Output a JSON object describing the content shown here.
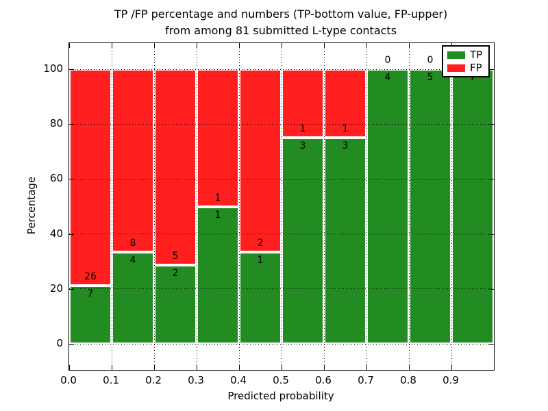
{
  "figure": {
    "title_line1": "TP /FP percentage and numbers (TP-bottom value, FP-upper)",
    "title_line2": "from among 81 submitted L-type contacts",
    "xlabel": "Predicted probability",
    "ylabel": "Percentage"
  },
  "colors": {
    "tp": "#228b22",
    "fp": "#ff1f1f",
    "bar_edge": "#ffffff",
    "grid": "#000000",
    "text": "#000000",
    "background": "#ffffff"
  },
  "legend": {
    "position": "upper right",
    "items": [
      {
        "label": "TP",
        "color_key": "tp"
      },
      {
        "label": "FP",
        "color_key": "fp"
      }
    ]
  },
  "chart_data": {
    "type": "bar",
    "stacked": true,
    "unit": "percent",
    "title": "TP /FP percentage and numbers (TP-bottom value, FP-upper) from among 81 submitted L-type contacts",
    "xlabel": "Predicted probability",
    "ylabel": "Percentage",
    "xlim": [
      0.0,
      1.0
    ],
    "ylim": [
      -10,
      110
    ],
    "x_tick_labels": [
      "0.0",
      "0.1",
      "0.2",
      "0.3",
      "0.4",
      "0.5",
      "0.6",
      "0.7",
      "0.8",
      "0.9"
    ],
    "y_ticks": [
      0,
      20,
      40,
      60,
      80,
      100
    ],
    "grid": "dotted",
    "bin_width": 0.1,
    "total_contacts": 81,
    "series": [
      {
        "name": "TP",
        "color_key": "tp",
        "counts": [
          7,
          4,
          2,
          1,
          1,
          3,
          3,
          4,
          5,
          7
        ]
      },
      {
        "name": "FP",
        "color_key": "fp",
        "counts": [
          26,
          8,
          5,
          1,
          2,
          1,
          1,
          0,
          0,
          0
        ]
      }
    ],
    "bins": [
      {
        "x_start": 0.0,
        "x_end": 0.1,
        "tp": 7,
        "fp": 26,
        "tp_pct": 21.2,
        "fp_pct": 78.8
      },
      {
        "x_start": 0.1,
        "x_end": 0.2,
        "tp": 4,
        "fp": 8,
        "tp_pct": 33.3,
        "fp_pct": 66.7
      },
      {
        "x_start": 0.2,
        "x_end": 0.3,
        "tp": 2,
        "fp": 5,
        "tp_pct": 28.6,
        "fp_pct": 71.4
      },
      {
        "x_start": 0.3,
        "x_end": 0.4,
        "tp": 1,
        "fp": 1,
        "tp_pct": 50.0,
        "fp_pct": 50.0
      },
      {
        "x_start": 0.4,
        "x_end": 0.5,
        "tp": 1,
        "fp": 2,
        "tp_pct": 33.3,
        "fp_pct": 66.7
      },
      {
        "x_start": 0.5,
        "x_end": 0.6,
        "tp": 3,
        "fp": 1,
        "tp_pct": 75.0,
        "fp_pct": 25.0
      },
      {
        "x_start": 0.6,
        "x_end": 0.7,
        "tp": 3,
        "fp": 1,
        "tp_pct": 75.0,
        "fp_pct": 25.0
      },
      {
        "x_start": 0.7,
        "x_end": 0.8,
        "tp": 4,
        "fp": 0,
        "tp_pct": 100.0,
        "fp_pct": 0.0
      },
      {
        "x_start": 0.8,
        "x_end": 0.9,
        "tp": 5,
        "fp": 0,
        "tp_pct": 100.0,
        "fp_pct": 0.0
      },
      {
        "x_start": 0.9,
        "x_end": 1.0,
        "tp": 7,
        "fp": 0,
        "tp_pct": 100.0,
        "fp_pct": 0.0
      }
    ]
  }
}
